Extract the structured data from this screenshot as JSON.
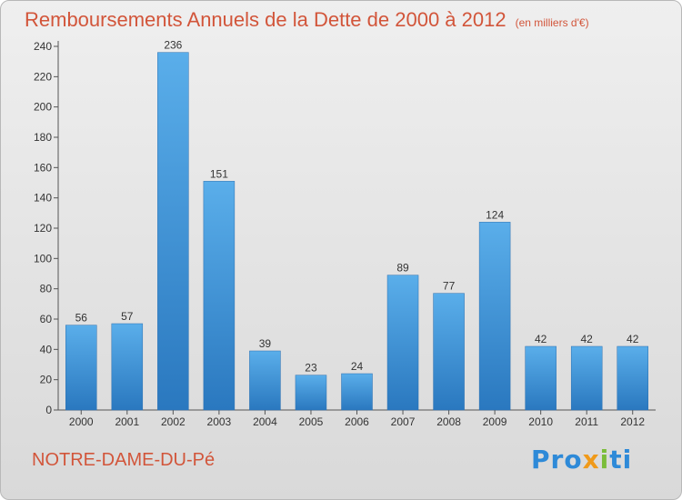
{
  "chart_data": {
    "type": "bar",
    "title": "Remboursements Annuels de la Dette de 2000 à 2012",
    "unit_note": "(en milliers d'€)",
    "categories": [
      "2000",
      "2001",
      "2002",
      "2003",
      "2004",
      "2005",
      "2006",
      "2007",
      "2008",
      "2009",
      "2010",
      "2011",
      "2012"
    ],
    "values": [
      56,
      57,
      236,
      151,
      39,
      23,
      24,
      89,
      77,
      124,
      42,
      42,
      42
    ],
    "ylim": [
      0,
      240
    ],
    "yticks": [
      0,
      20,
      40,
      60,
      80,
      100,
      120,
      140,
      160,
      180,
      200,
      220,
      240
    ],
    "grid": false,
    "bar_color": "#3b8fd6"
  },
  "footer": {
    "city": "NOTRE-DAME-DU-Pé",
    "logo": "Proxiti"
  }
}
